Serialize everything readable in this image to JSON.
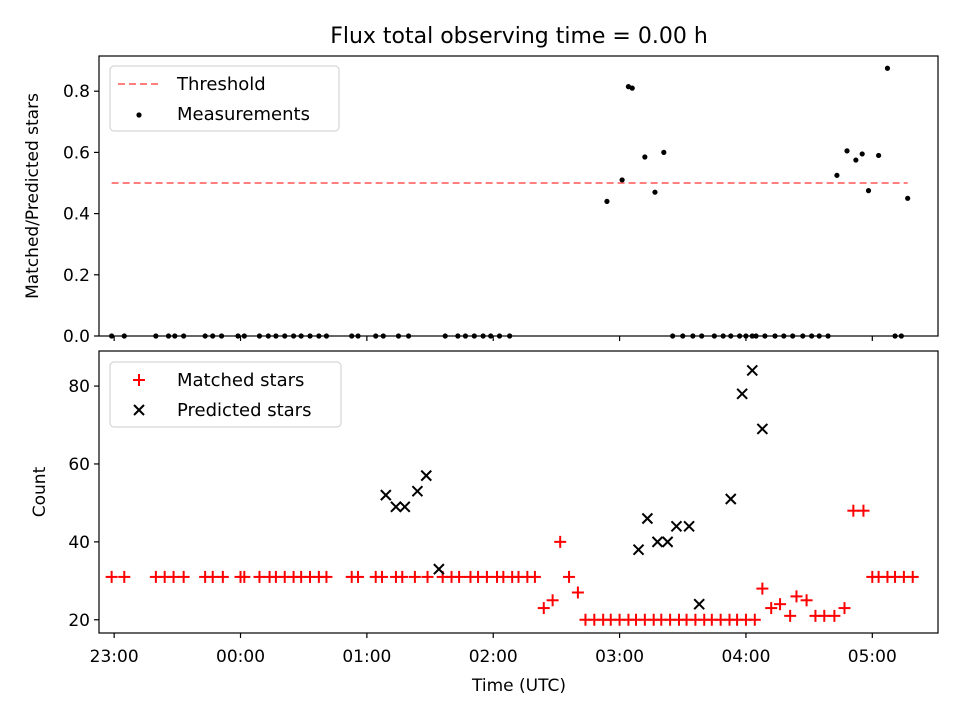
{
  "title": "Flux total observing time = 0.00 h",
  "colors": {
    "threshold": "#ff7f7f",
    "measurement": "#000000",
    "matched": "#ff0000",
    "predicted": "#000000",
    "axis": "#000000"
  },
  "chart_data": [
    {
      "type": "scatter",
      "panel": "top",
      "xlabel": "",
      "ylabel": "Matched/Predicted stars",
      "xlim": [
        -0.12,
        6.52
      ],
      "ylim": [
        0,
        0.915
      ],
      "yticks": [
        0.0,
        0.2,
        0.4,
        0.6,
        0.8
      ],
      "ytick_labels": [
        "0.0",
        "0.2",
        "0.4",
        "0.6",
        "0.8"
      ],
      "xticks": [
        0,
        1,
        2,
        3,
        4,
        5,
        6
      ],
      "legend": {
        "placement": "top-left",
        "entries": [
          {
            "label": "Threshold",
            "marker": "dashed-line"
          },
          {
            "label": "Measurements",
            "marker": "dot"
          }
        ]
      },
      "threshold": {
        "value": 0.5,
        "x_range": [
          -0.02,
          6.28
        ]
      },
      "series": [
        {
          "name": "Measurements",
          "x": [
            -0.02,
            0.08,
            0.33,
            0.43,
            0.48,
            0.55,
            0.72,
            0.78,
            0.85,
            0.98,
            1.03,
            1.15,
            1.22,
            1.28,
            1.35,
            1.42,
            1.48,
            1.55,
            1.62,
            1.68,
            1.88,
            1.93,
            2.07,
            2.13,
            2.25,
            2.33,
            2.62,
            2.72,
            2.78,
            2.85,
            2.92,
            2.98,
            3.05,
            3.13,
            3.9,
            4.02,
            4.07,
            4.1,
            4.2,
            4.28,
            4.35,
            4.42,
            4.5,
            4.58,
            4.65,
            4.75,
            4.82,
            4.88,
            4.95,
            5.0,
            5.05,
            5.08,
            5.15,
            5.23,
            5.3,
            5.37,
            5.45,
            5.52,
            5.58,
            5.65,
            5.72,
            5.8,
            5.87,
            5.92,
            5.97,
            6.05,
            6.12,
            6.18,
            6.23,
            6.28
          ],
          "y": [
            0,
            0,
            0,
            0,
            0,
            0,
            0,
            0,
            0,
            0,
            0,
            0,
            0,
            0,
            0,
            0,
            0,
            0,
            0,
            0,
            0,
            0,
            0,
            0,
            0,
            0,
            0,
            0,
            0,
            0,
            0,
            0,
            0,
            0,
            0.44,
            0.51,
            0.815,
            0.81,
            0.585,
            0.47,
            0.6,
            0,
            0,
            0,
            0,
            0,
            0,
            0,
            0,
            0,
            0,
            0,
            0,
            0,
            0,
            0,
            0,
            0,
            0,
            0,
            0.525,
            0.605,
            0.575,
            0.595,
            0.475,
            0.59,
            0.875,
            0,
            0,
            0.45
          ]
        }
      ]
    },
    {
      "type": "scatter",
      "panel": "bottom",
      "xlabel": "Time (UTC)",
      "ylabel": "Count",
      "xlim": [
        -0.12,
        6.52
      ],
      "ylim": [
        16.6,
        89.0
      ],
      "yticks": [
        20,
        40,
        60,
        80
      ],
      "ytick_labels": [
        "20",
        "40",
        "60",
        "80"
      ],
      "xticks": [
        0,
        1,
        2,
        3,
        4,
        5,
        6
      ],
      "xtick_labels": [
        "23:00",
        "00:00",
        "01:00",
        "02:00",
        "03:00",
        "04:00",
        "05:00"
      ],
      "legend": {
        "placement": "top-left",
        "entries": [
          {
            "label": "Matched stars",
            "marker": "plus"
          },
          {
            "label": "Predicted stars",
            "marker": "x"
          }
        ]
      },
      "series": [
        {
          "name": "Matched stars",
          "x": [
            -0.02,
            0.08,
            0.33,
            0.4,
            0.47,
            0.55,
            0.72,
            0.78,
            0.86,
            1.0,
            1.03,
            1.15,
            1.23,
            1.28,
            1.35,
            1.42,
            1.48,
            1.55,
            1.62,
            1.68,
            1.88,
            1.93,
            2.07,
            2.12,
            2.23,
            2.28,
            2.38,
            2.48,
            2.6,
            2.67,
            2.73,
            2.82,
            2.88,
            2.95,
            3.03,
            3.08,
            3.15,
            3.2,
            3.27,
            3.33,
            3.4,
            3.47,
            3.53,
            3.6,
            3.67,
            3.73,
            3.8,
            3.87,
            3.93,
            4.0,
            4.07,
            4.13,
            4.2,
            4.27,
            4.33,
            4.4,
            4.47,
            4.53,
            4.6,
            4.67,
            4.73,
            4.8,
            4.87,
            4.93,
            5.0,
            5.07,
            5.13,
            5.2,
            5.27,
            5.35,
            5.4,
            5.48,
            5.55,
            5.62,
            5.7,
            5.78,
            5.85,
            5.93,
            6.0,
            6.05,
            6.12,
            6.18,
            6.25,
            6.32
          ],
          "y": [
            31,
            31,
            31,
            31,
            31,
            31,
            31,
            31,
            31,
            31,
            31,
            31,
            31,
            31,
            31,
            31,
            31,
            31,
            31,
            31,
            31,
            31,
            31,
            31,
            31,
            31,
            31,
            31,
            31,
            31,
            31,
            31,
            31,
            31,
            31,
            31,
            31,
            31,
            31,
            31,
            23,
            25,
            40,
            31,
            27,
            20,
            20,
            20,
            20,
            20,
            20,
            20,
            20,
            20,
            20,
            20,
            20,
            20,
            20,
            20,
            20,
            20,
            20,
            20,
            20,
            20,
            28,
            23,
            24,
            21,
            26,
            25,
            21,
            21,
            21,
            23,
            48,
            48,
            31,
            31,
            31,
            31,
            31,
            31
          ]
        },
        {
          "name": "Predicted stars",
          "x": [
            2.15,
            2.23,
            2.3,
            2.4,
            2.47,
            2.57,
            4.15,
            4.22,
            4.3,
            4.38,
            4.45,
            4.55,
            4.63,
            4.88,
            4.97,
            5.05,
            5.13
          ],
          "y": [
            52,
            49,
            49,
            53,
            57,
            33,
            38,
            46,
            40,
            40,
            44,
            44,
            24,
            51,
            78,
            84,
            69
          ]
        }
      ]
    }
  ]
}
